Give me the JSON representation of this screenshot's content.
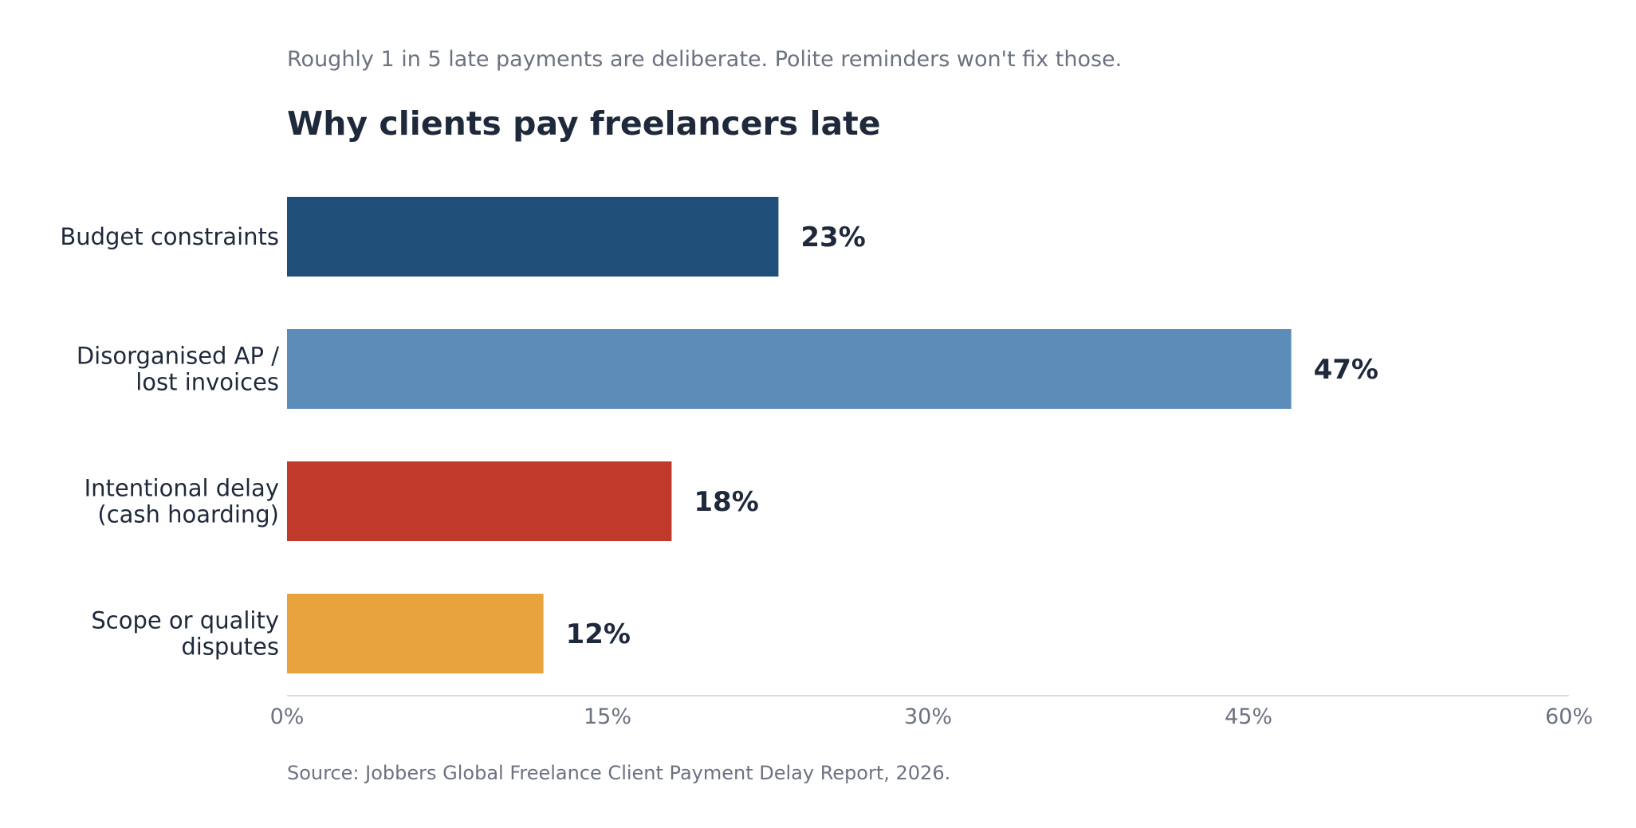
{
  "chart_data": {
    "type": "bar",
    "orientation": "horizontal",
    "subtitle": "Roughly 1 in 5 late payments are deliberate. Polite reminders won't fix those.",
    "title": "Why clients pay freelancers late",
    "categories": [
      [
        "Budget constraints"
      ],
      [
        "Disorganised AP /",
        "lost invoices"
      ],
      [
        "Intentional delay",
        "(cash hoarding)"
      ],
      [
        "Scope or quality",
        "disputes"
      ]
    ],
    "values": [
      23,
      47,
      18,
      12
    ],
    "value_labels": [
      "23%",
      "47%",
      "18%",
      "12%"
    ],
    "colors": [
      "#1f4e79",
      "#5b8db8",
      "#c0392b",
      "#e8a33d"
    ],
    "xlim": [
      0,
      60
    ],
    "xticks": [
      0,
      15,
      30,
      45,
      60
    ],
    "xtick_labels": [
      "0%",
      "15%",
      "30%",
      "45%",
      "60%"
    ],
    "grid": false,
    "source": "Source: Jobbers Global Freelance Client Payment Delay Report, 2026."
  }
}
